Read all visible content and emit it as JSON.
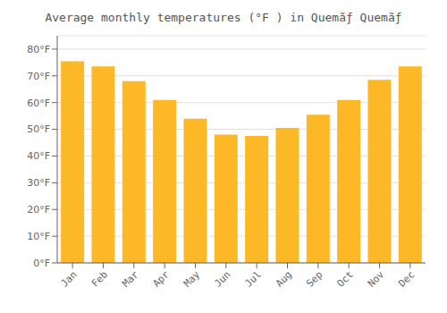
{
  "chart_data": {
    "type": "bar",
    "title": "Average monthly temperatures (°F ) in Quemãƒ Quemãƒ",
    "categories": [
      "Jan",
      "Feb",
      "Mar",
      "Apr",
      "May",
      "Jun",
      "Jul",
      "Aug",
      "Sep",
      "Oct",
      "Nov",
      "Dec"
    ],
    "values": [
      75.5,
      73.5,
      68.0,
      61.0,
      54.0,
      48.0,
      47.5,
      50.5,
      55.5,
      61.0,
      68.5,
      73.5
    ],
    "color": "#FDB827",
    "ylim": [
      0,
      85
    ],
    "yticks": [
      {
        "value": 0,
        "label": "0°F"
      },
      {
        "value": 10,
        "label": "10°F"
      },
      {
        "value": 20,
        "label": "20°F"
      },
      {
        "value": 30,
        "label": "30°F"
      },
      {
        "value": 40,
        "label": "40°F"
      },
      {
        "value": 50,
        "label": "50°F"
      },
      {
        "value": 60,
        "label": "60°F"
      },
      {
        "value": 70,
        "label": "70°F"
      },
      {
        "value": 80,
        "label": "80°F"
      }
    ],
    "grid": true
  }
}
